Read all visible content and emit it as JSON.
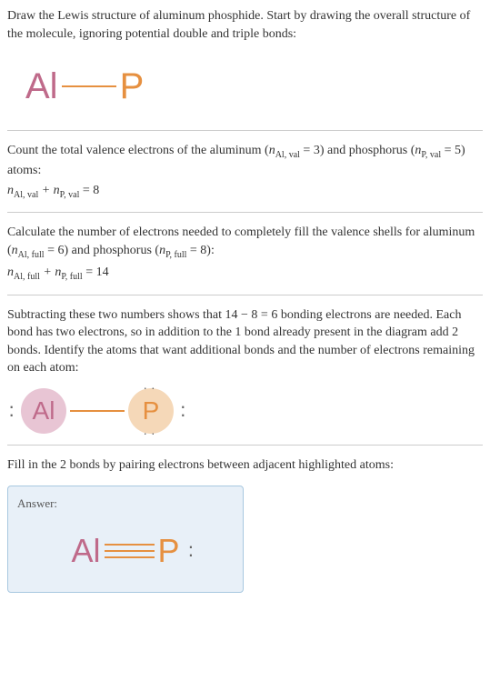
{
  "intro": {
    "text": "Draw the Lewis structure of aluminum phosphide. Start by drawing the overall structure of the molecule, ignoring potential double and triple bonds:"
  },
  "structure1": {
    "al_symbol": "Al",
    "p_symbol": "P",
    "al_color": "#bf6a8a",
    "p_color": "#e69040",
    "bond_color": "#e69040"
  },
  "step2": {
    "text_parts": {
      "p1": "Count the total valence electrons of the aluminum (",
      "p2": " = 3) and phosphorus (",
      "p3": " = 5) atoms:"
    },
    "var1": "n",
    "sub1": "Al, val",
    "var2": "n",
    "sub2": "P, val",
    "equation_parts": {
      "v1": "n",
      "s1": "Al, val",
      "plus": " + ",
      "v2": "n",
      "s2": "P, val",
      "eq": " = 8"
    }
  },
  "step3": {
    "text_parts": {
      "p1": "Calculate the number of electrons needed to completely fill the valence shells for aluminum (",
      "p2": " = 6) and phosphorus (",
      "p3": " = 8):"
    },
    "var1": "n",
    "sub1": "Al, full",
    "var2": "n",
    "sub2": "P, full",
    "equation_parts": {
      "v1": "n",
      "s1": "Al, full",
      "plus": " + ",
      "v2": "n",
      "s2": "P, full",
      "eq": " = 14"
    }
  },
  "step4": {
    "text": "Subtracting these two numbers shows that 14 − 8 = 6 bonding electrons are needed. Each bond has two electrons, so in addition to the 1 bond already present in the diagram add 2 bonds. Identify the atoms that want additional bonds and the number of electrons remaining on each atom:"
  },
  "structure2": {
    "al_symbol": "Al",
    "p_symbol": "P",
    "al_bg": "#e8c5d4",
    "al_fg": "#bf6a8a",
    "p_bg": "#f5d8b8",
    "p_fg": "#e69040"
  },
  "step5": {
    "text": "Fill in the 2 bonds by pairing electrons between adjacent highlighted atoms:"
  },
  "answer": {
    "label": "Answer:",
    "al_symbol": "Al",
    "p_symbol": "P",
    "box_bg": "#e8f0f8",
    "box_border": "#a8c8e0",
    "al_color": "#bf6a8a",
    "p_color": "#e69040"
  }
}
